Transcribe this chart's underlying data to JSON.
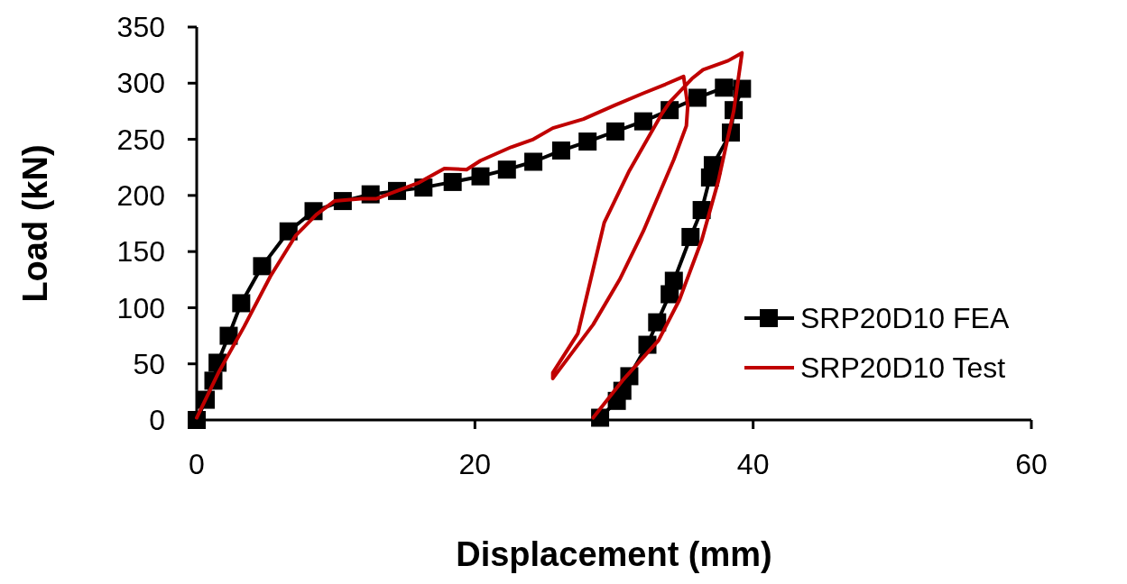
{
  "chart_data": {
    "type": "line",
    "xlabel": "Displacement (mm)",
    "ylabel": "Load (kN)",
    "xlim": [
      0,
      60
    ],
    "xticks": [
      0,
      20,
      40,
      60
    ],
    "ylim": [
      0,
      350
    ],
    "yticks": [
      0,
      50,
      100,
      150,
      200,
      250,
      300,
      350
    ],
    "grid": false,
    "legend": "bottom right",
    "series": [
      {
        "name": "SRP20D10 FEA",
        "color": "#000000",
        "marker": "square",
        "x": [
          0,
          0.65,
          1.2,
          1.5,
          2.3,
          3.2,
          4.7,
          6.6,
          8.4,
          10.5,
          12.5,
          14.4,
          16.3,
          18.4,
          20.4,
          22.3,
          24.2,
          26.2,
          28.1,
          30.1,
          32.1,
          34.0,
          36.0,
          37.9,
          39.2,
          38.6,
          38.4,
          37.1,
          36.9,
          36.3,
          35.5,
          34.3,
          34.0,
          33.1,
          32.4,
          31.1,
          30.6,
          30.2,
          29.0
        ],
        "values": [
          0,
          18,
          35,
          51,
          75,
          104,
          137,
          168,
          186,
          195,
          201,
          204,
          207,
          212,
          217,
          223,
          230,
          240,
          248,
          257,
          266,
          276,
          287,
          296,
          295,
          276,
          256,
          227,
          216,
          187,
          163,
          124,
          112,
          87,
          67,
          39,
          26,
          17,
          2
        ]
      },
      {
        "name": "SRP20D10 Test",
        "color": "#c00000",
        "marker": "none",
        "x": [
          0,
          1.6,
          3.4,
          5.3,
          7.1,
          8.6,
          9.9,
          11.8,
          12.9,
          15.9,
          17.8,
          19.4,
          20.4,
          22.6,
          24.2,
          25.6,
          27.8,
          30.0,
          32.1,
          33.7,
          35.0,
          35.3,
          35.2,
          34.3,
          32.1,
          30.4,
          28.5,
          25.6,
          25.6,
          27.4,
          29.3,
          31.1,
          33.4,
          34.0,
          35.6,
          36.4,
          38.2,
          39.2,
          38.6,
          37.5,
          36.3,
          34.7,
          33.2,
          30.6,
          28.5
        ],
        "values": [
          2,
          43,
          83,
          128,
          164,
          183,
          195,
          197,
          197,
          211,
          224,
          223,
          231,
          243,
          250,
          260,
          268,
          280,
          291,
          299,
          306,
          280,
          262,
          232,
          168,
          125,
          85,
          37,
          42,
          77,
          176,
          222,
          272,
          283,
          304,
          312,
          320,
          327,
          275,
          213,
          160,
          107,
          71,
          35,
          2
        ]
      }
    ]
  }
}
